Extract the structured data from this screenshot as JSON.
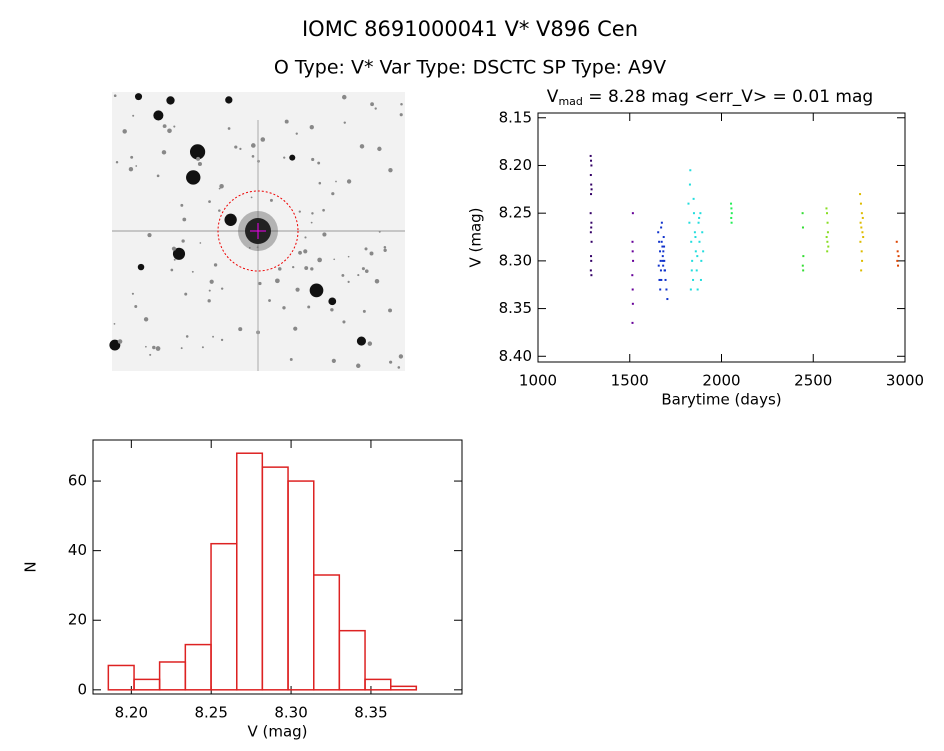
{
  "title": "IOMC 8691000041   V* V896 Cen",
  "subtitle": "O Type: V*  Var Type: DSCTC  SP Type: A9V",
  "chart_data": [
    {
      "type": "scatter",
      "title_parts": [
        "V",
        "mad",
        " = 8.28 mag <err_V> = 0.01 mag"
      ],
      "x_label": "Barytime (days)",
      "y_label": "V (mag)",
      "xlim": [
        1000,
        3000
      ],
      "xticks": [
        1000,
        1500,
        2000,
        2500,
        3000
      ],
      "ylim": [
        8.406,
        8.145
      ],
      "yticks": [
        8.15,
        {
          "value": 8.2,
          "label": "8.20"
        },
        8.25,
        {
          "value": 8.3,
          "label": "8.30"
        },
        8.35,
        {
          "value": 8.4,
          "label": "8.40"
        }
      ],
      "series": [
        {
          "color": "#330066",
          "x": [
            1287,
            1289,
            1291,
            1288,
            1290,
            1292,
            1289,
            1287,
            1291,
            1290,
            1288,
            1292,
            1289,
            1290,
            1288,
            1291
          ],
          "values": [
            8.19,
            8.195,
            8.2,
            8.21,
            8.22,
            8.225,
            8.23,
            8.25,
            8.26,
            8.265,
            8.27,
            8.28,
            8.295,
            8.3,
            8.31,
            8.315
          ]
        },
        {
          "color": "#660099",
          "x": [
            1517,
            1515,
            1516,
            1518,
            1514,
            1516,
            1517,
            1515
          ],
          "values": [
            8.25,
            8.28,
            8.29,
            8.3,
            8.315,
            8.33,
            8.345,
            8.365
          ]
        },
        {
          "color": "#1133cc",
          "x": [
            1655,
            1660,
            1665,
            1668,
            1670,
            1672,
            1675,
            1678,
            1680,
            1682,
            1685,
            1688,
            1690,
            1662,
            1666,
            1671,
            1674,
            1679,
            1683,
            1687,
            1692,
            1700,
            1705,
            1695,
            1658
          ],
          "values": [
            8.27,
            8.28,
            8.29,
            8.3,
            8.31,
            8.32,
            8.26,
            8.285,
            8.295,
            8.305,
            8.275,
            8.3,
            8.31,
            8.32,
            8.33,
            8.265,
            8.28,
            8.3,
            8.29,
            8.285,
            8.31,
            8.33,
            8.34,
            8.32,
            8.305
          ]
        },
        {
          "color": "#22dddd",
          "x": [
            1820,
            1825,
            1830,
            1835,
            1840,
            1845,
            1850,
            1855,
            1860,
            1865,
            1870,
            1875,
            1880,
            1885,
            1890,
            1895,
            1900,
            1828,
            1838,
            1848,
            1858,
            1868,
            1878,
            1888,
            1833
          ],
          "values": [
            8.24,
            8.26,
            8.205,
            8.28,
            8.3,
            8.32,
            8.25,
            8.27,
            8.29,
            8.31,
            8.33,
            8.26,
            8.28,
            8.25,
            8.3,
            8.27,
            8.29,
            8.22,
            8.31,
            8.235,
            8.275,
            8.295,
            8.255,
            8.32,
            8.33
          ]
        },
        {
          "color": "#22ee55",
          "x": [
            2052,
            2054,
            2056,
            2053,
            2055
          ],
          "values": [
            8.24,
            8.245,
            8.25,
            8.255,
            8.26
          ]
        },
        {
          "color": "#33dd33",
          "x": [
            2442,
            2444,
            2446,
            2443,
            2445
          ],
          "values": [
            8.25,
            8.265,
            8.295,
            8.305,
            8.31
          ]
        },
        {
          "color": "#88dd22",
          "x": [
            2572,
            2575,
            2578,
            2580,
            2573,
            2577,
            2582,
            2576
          ],
          "values": [
            8.245,
            8.25,
            8.26,
            8.27,
            8.275,
            8.28,
            8.285,
            8.29
          ]
        },
        {
          "color": "#ddbb00",
          "x": [
            2755,
            2760,
            2765,
            2770,
            2758,
            2762,
            2768,
            2772,
            2757,
            2764,
            2766,
            2761
          ],
          "values": [
            8.23,
            8.24,
            8.25,
            8.255,
            8.26,
            8.265,
            8.27,
            8.275,
            8.28,
            8.29,
            8.3,
            8.31
          ]
        },
        {
          "color": "#dd4400",
          "x": [
            2955,
            2960,
            2965,
            2958,
            2962
          ],
          "values": [
            8.28,
            8.29,
            8.295,
            8.3,
            8.305
          ]
        }
      ]
    },
    {
      "type": "histogram",
      "x_label": "V (mag)",
      "y_label": "N",
      "color": "#dd2222",
      "bins": [
        8.1856,
        8.2017,
        8.2177,
        8.2338,
        8.2499,
        8.266,
        8.282,
        8.2981,
        8.3142,
        8.3302,
        8.3463,
        8.3624,
        8.3784
      ],
      "values": [
        7,
        3,
        8,
        13,
        42,
        68,
        64,
        60,
        33,
        17,
        3,
        1
      ],
      "xlim": [
        8.176,
        8.407
      ],
      "xticks": [
        {
          "value": 8.2,
          "label": "8.20"
        },
        8.25,
        {
          "value": 8.3,
          "label": "8.30"
        },
        8.35
      ],
      "ylim": [
        -1.2,
        71.8
      ],
      "yticks": [
        0,
        20,
        40,
        60
      ]
    }
  ]
}
